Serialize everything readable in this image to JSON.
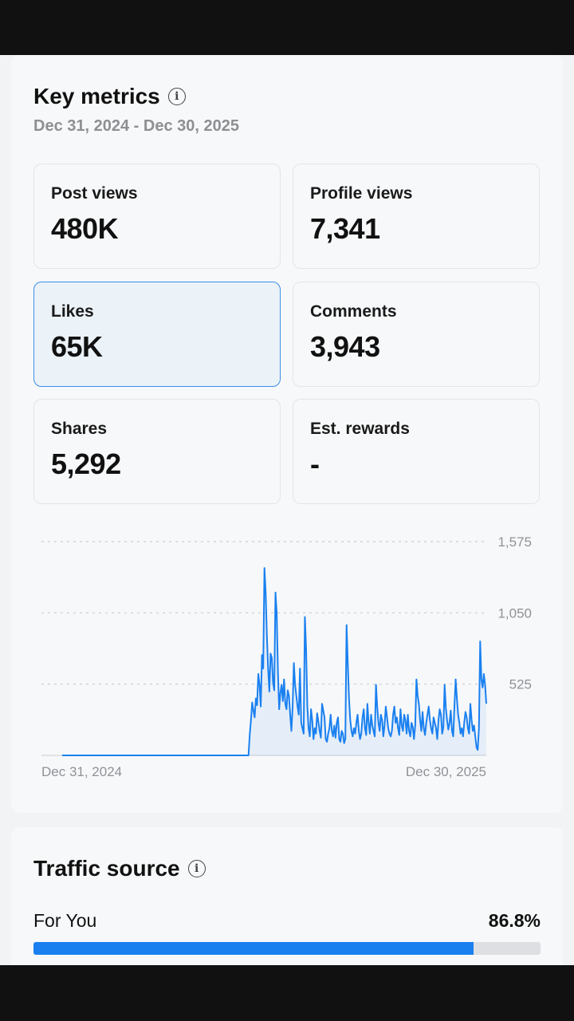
{
  "key_metrics": {
    "title": "Key metrics",
    "info_icon": "info-icon",
    "date_range": "Dec 31, 2024 - Dec 30, 2025",
    "tiles": [
      {
        "label": "Post views",
        "value": "480K",
        "selected": false
      },
      {
        "label": "Profile views",
        "value": "7,341",
        "selected": false
      },
      {
        "label": "Likes",
        "value": "65K",
        "selected": true
      },
      {
        "label": "Comments",
        "value": "3,943",
        "selected": false
      },
      {
        "label": "Shares",
        "value": "5,292",
        "selected": false
      },
      {
        "label": "Est. rewards",
        "value": "-",
        "selected": false
      }
    ]
  },
  "chart_data": {
    "type": "area",
    "series_color": "#1a80f0",
    "ylim": [
      0,
      1575
    ],
    "yticks": [
      525,
      1050,
      1575
    ],
    "ytick_labels": [
      "525",
      "1,050",
      "1,575"
    ],
    "xtick_labels": [
      "Dec 31, 2024",
      "Dec 30, 2025"
    ],
    "grid": true,
    "values": [
      0,
      0,
      0,
      0,
      0,
      0,
      0,
      0,
      0,
      0,
      0,
      0,
      0,
      0,
      0,
      0,
      0,
      0,
      0,
      0,
      0,
      0,
      0,
      0,
      0,
      0,
      0,
      0,
      0,
      0,
      0,
      0,
      0,
      0,
      0,
      0,
      0,
      0,
      0,
      0,
      0,
      0,
      0,
      0,
      0,
      0,
      0,
      0,
      0,
      0,
      0,
      0,
      0,
      0,
      0,
      0,
      0,
      0,
      0,
      0,
      0,
      0,
      0,
      0,
      0,
      0,
      0,
      0,
      0,
      0,
      0,
      0,
      0,
      0,
      0,
      0,
      0,
      0,
      0,
      0,
      0,
      0,
      0,
      0,
      0,
      0,
      0,
      0,
      0,
      0,
      0,
      0,
      0,
      0,
      0,
      0,
      0,
      0,
      0,
      0,
      0,
      0,
      0,
      0,
      0,
      0,
      0,
      0,
      0,
      0,
      0,
      0,
      0,
      0,
      0,
      0,
      0,
      0,
      0,
      0,
      0,
      0,
      0,
      0,
      0,
      0,
      0,
      0,
      0,
      0,
      0,
      0,
      0,
      0,
      0,
      0,
      0,
      0,
      0,
      0,
      0,
      0,
      0,
      0,
      0,
      0,
      0,
      0,
      0,
      0,
      0,
      0,
      0,
      150,
      260,
      390,
      330,
      280,
      420,
      370,
      600,
      520,
      360,
      740,
      640,
      1380,
      1200,
      880,
      640,
      470,
      750,
      720,
      540,
      480,
      1200,
      1050,
      620,
      340,
      460,
      520,
      400,
      560,
      380,
      340,
      480,
      440,
      300,
      180,
      360,
      680,
      520,
      440,
      360,
      300,
      640,
      240,
      200,
      160,
      1020,
      780,
      360,
      200,
      140,
      340,
      260,
      120,
      200,
      160,
      310,
      250,
      180,
      130,
      380,
      330,
      280,
      120,
      100,
      160,
      200,
      300,
      180,
      140,
      220,
      130,
      240,
      280,
      120,
      100,
      180,
      160,
      90,
      120,
      960,
      680,
      420,
      260,
      180,
      140,
      200,
      160,
      240,
      300,
      180,
      120,
      160,
      280,
      340,
      200,
      150,
      380,
      240,
      160,
      300,
      220,
      180,
      140,
      520,
      360,
      240,
      180,
      300,
      260,
      140,
      220,
      360,
      280,
      200,
      160,
      140,
      180,
      300,
      360,
      240,
      280,
      200,
      150,
      340,
      220,
      180,
      300,
      260,
      160,
      300,
      180,
      140,
      240,
      210,
      120,
      220,
      560,
      440,
      380,
      260,
      180,
      320,
      200,
      150,
      240,
      300,
      360,
      260,
      200,
      160,
      280,
      240,
      200,
      120,
      260,
      340,
      300,
      160,
      210,
      520,
      350,
      260,
      190,
      240,
      330,
      180,
      140,
      360,
      560,
      420,
      300,
      240,
      160,
      200,
      140,
      240,
      320,
      280,
      200,
      160,
      380,
      260,
      180,
      220,
      140,
      60,
      40,
      200,
      840,
      560,
      500,
      600,
      520,
      380
    ]
  },
  "traffic_source": {
    "title": "Traffic source",
    "info_icon": "info-icon",
    "rows": [
      {
        "label": "For You",
        "percent_text": "86.8%",
        "percent": 86.8
      }
    ]
  }
}
